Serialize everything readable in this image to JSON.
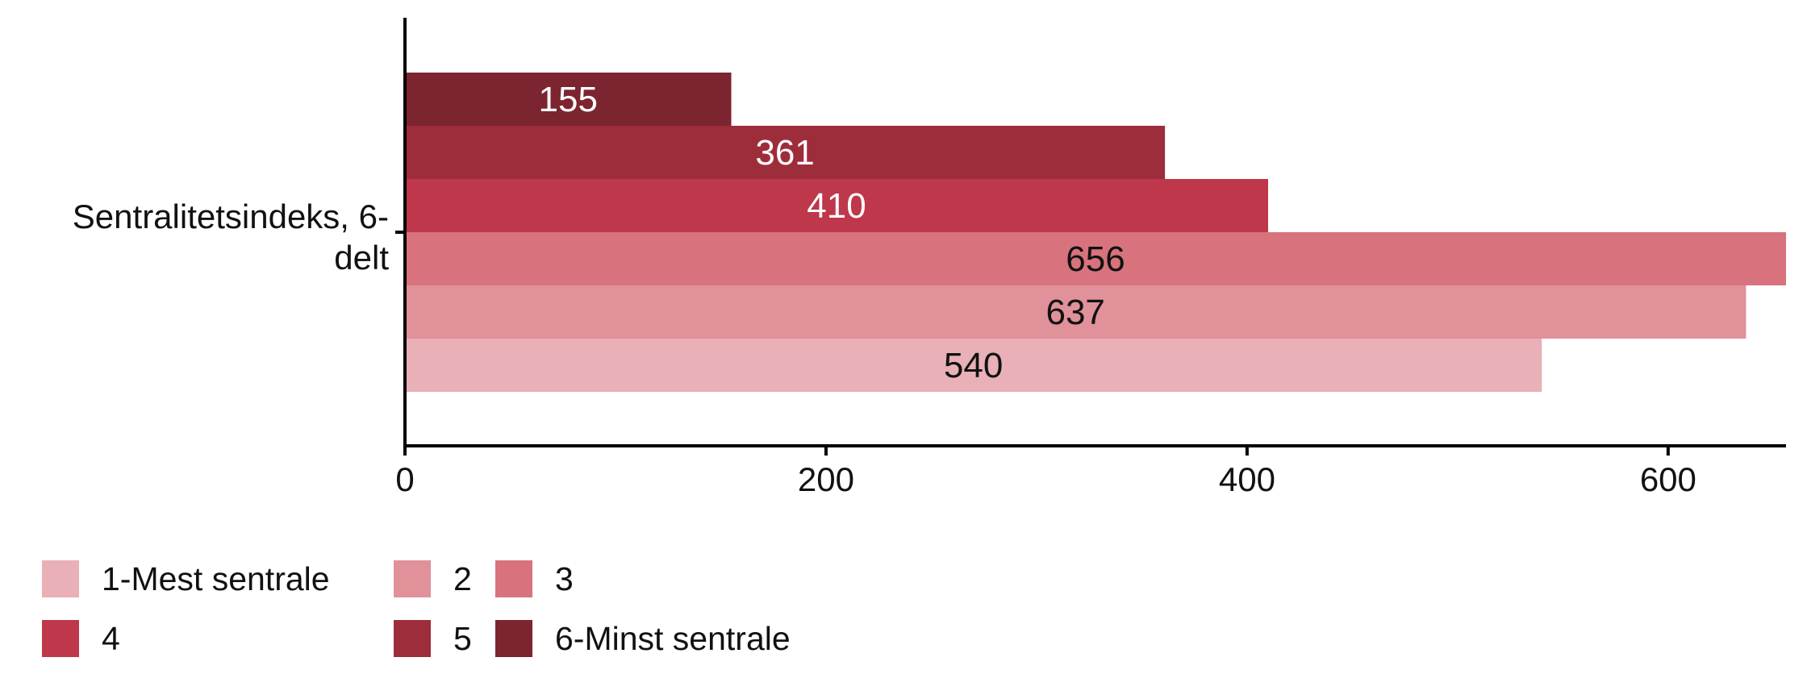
{
  "chart_data": {
    "type": "bar",
    "orientation": "horizontal",
    "category_label_lines": [
      "Sentralitetsindeks, 6-",
      "delt"
    ],
    "series": [
      {
        "name": "6-Minst sentrale",
        "value": 155,
        "color": "#7c2530",
        "label_color": "#ffffff"
      },
      {
        "name": "5",
        "value": 361,
        "color": "#9e2d3c",
        "label_color": "#ffffff"
      },
      {
        "name": "4",
        "value": 410,
        "color": "#be374a",
        "label_color": "#ffffff"
      },
      {
        "name": "3",
        "value": 656,
        "color": "#d8727d",
        "label_color": "#111111"
      },
      {
        "name": "2",
        "value": 637,
        "color": "#e0919a",
        "label_color": "#111111"
      },
      {
        "name": "1-Mest sentrale",
        "value": 540,
        "color": "#e9b0b7",
        "label_color": "#111111"
      }
    ],
    "xlim": [
      0,
      656
    ],
    "xticks": [
      0,
      200,
      400,
      600
    ],
    "grid": false,
    "legend": {
      "position": "bottom-left",
      "rows": [
        [
          "1-Mest sentrale",
          "2",
          "3"
        ],
        [
          "4",
          "5",
          "6-Minst sentrale"
        ]
      ]
    }
  }
}
